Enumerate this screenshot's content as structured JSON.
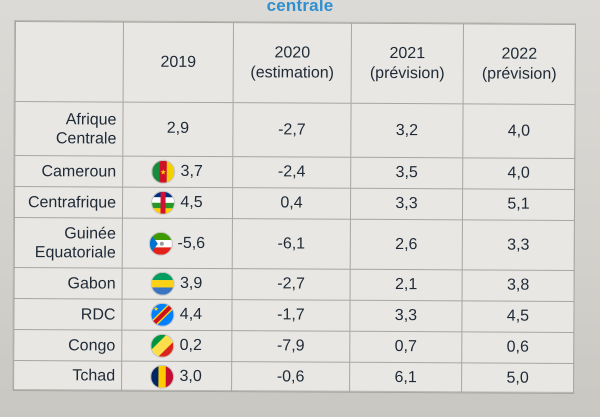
{
  "heading": "centrale",
  "columns": {
    "country": "",
    "y2019": "2019",
    "y2020": "2020 (estimation)",
    "y2021": "2021 (prévision)",
    "y2022": "2022 (prévision)"
  },
  "rows": [
    {
      "name": "Afrique Centrale",
      "flag": "",
      "y2019": "2,9",
      "y2020": "-2,7",
      "y2021": "3,2",
      "y2022": "4,0"
    },
    {
      "name": "Cameroun",
      "flag": "cameroon-flag-icon",
      "y2019": "3,7",
      "y2020": "-2,4",
      "y2021": "3,5",
      "y2022": "4,0"
    },
    {
      "name": "Centrafrique",
      "flag": "car-flag-icon",
      "y2019": "4,5",
      "y2020": "0,4",
      "y2021": "3,3",
      "y2022": "5,1"
    },
    {
      "name": "Guinée Equatoriale",
      "flag": "equatorial-guinea-flag-icon",
      "y2019": "-5,6",
      "y2020": "-6,1",
      "y2021": "2,6",
      "y2022": "3,3"
    },
    {
      "name": "Gabon",
      "flag": "gabon-flag-icon",
      "y2019": "3,9",
      "y2020": "-2,7",
      "y2021": "2,1",
      "y2022": "3,8"
    },
    {
      "name": "RDC",
      "flag": "drc-flag-icon",
      "y2019": "4,4",
      "y2020": "-1,7",
      "y2021": "3,3",
      "y2022": "4,5"
    },
    {
      "name": "Congo",
      "flag": "congo-flag-icon",
      "y2019": "0,2",
      "y2020": "-7,9",
      "y2021": "0,7",
      "y2022": "0,6"
    },
    {
      "name": "Tchad",
      "flag": "chad-flag-icon",
      "y2019": "3,0",
      "y2020": "-0,6",
      "y2021": "6,1",
      "y2022": "5,0"
    }
  ],
  "colors": {
    "heading": "#2f8fd0",
    "text": "#1f2a36",
    "rule": "#a7a6a2"
  }
}
